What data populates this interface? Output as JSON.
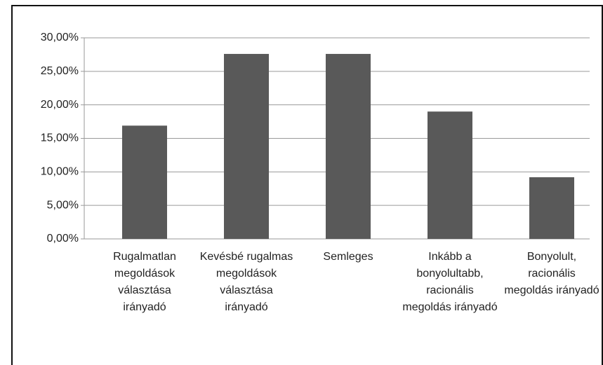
{
  "chart_data": {
    "type": "bar",
    "categories": [
      "Rugalmatlan megoldások választása irányadó",
      "Kevésbé rugalmas megoldások választása irányadó",
      "Semleges",
      "Inkább a bonyolultabb, racionális megoldás irányadó",
      "Bonyolult, racionális megoldás irányadó"
    ],
    "values": [
      16.9,
      27.6,
      27.6,
      19.0,
      9.2
    ],
    "color": "#595959",
    "ylim": [
      0,
      30
    ],
    "yticks": [
      {
        "value": 0,
        "label": "0,00%"
      },
      {
        "value": 5,
        "label": "5,00%"
      },
      {
        "value": 10,
        "label": "10,00%"
      },
      {
        "value": 15,
        "label": "15,00%"
      },
      {
        "value": 20,
        "label": "20,00%"
      },
      {
        "value": 25,
        "label": "25,00%"
      },
      {
        "value": 30,
        "label": "30,00%"
      }
    ],
    "grid": true
  }
}
